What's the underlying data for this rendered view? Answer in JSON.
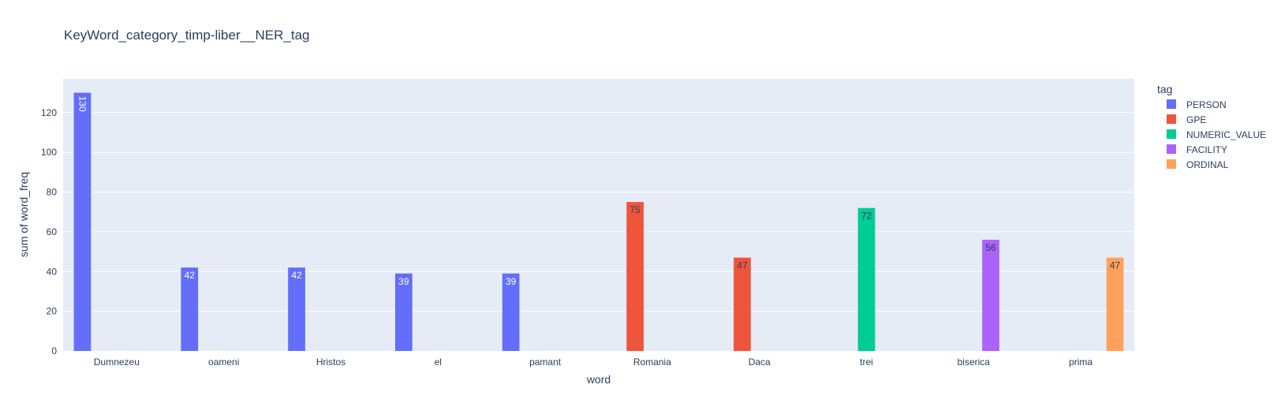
{
  "chart_data": {
    "type": "bar",
    "title": "KeyWord_category_timp-liber__NER_tag",
    "xlabel": "word",
    "ylabel": "sum of word_freq",
    "ylim": [
      0,
      137
    ],
    "yticks": [
      0,
      20,
      40,
      60,
      80,
      100,
      120
    ],
    "grid": true,
    "legend": {
      "title": "tag",
      "position": "right"
    },
    "categories": [
      "Dumnezeu",
      "oameni",
      "Hristos",
      "el",
      "pamant",
      "Romania",
      "Daca",
      "trei",
      "biserica",
      "prima"
    ],
    "series": [
      {
        "name": "PERSON",
        "color": "#636efa",
        "label_color": "#ffffff",
        "values": [
          130,
          42,
          42,
          39,
          39,
          null,
          null,
          null,
          null,
          null
        ]
      },
      {
        "name": "GPE",
        "color": "#ef553b",
        "label_color": "#2a3f5f",
        "values": [
          null,
          null,
          null,
          null,
          null,
          75,
          47,
          null,
          null,
          null
        ]
      },
      {
        "name": "NUMERIC_VALUE",
        "color": "#00cc96",
        "label_color": "#2a3f5f",
        "values": [
          null,
          null,
          null,
          null,
          null,
          null,
          null,
          72,
          null,
          null
        ]
      },
      {
        "name": "FACILITY",
        "color": "#ab63fa",
        "label_color": "#2a3f5f",
        "values": [
          null,
          null,
          null,
          null,
          null,
          null,
          null,
          null,
          56,
          null
        ]
      },
      {
        "name": "ORDINAL",
        "color": "#ffa15a",
        "label_color": "#2a3f5f",
        "values": [
          null,
          null,
          null,
          null,
          null,
          null,
          null,
          null,
          null,
          47
        ]
      }
    ]
  }
}
